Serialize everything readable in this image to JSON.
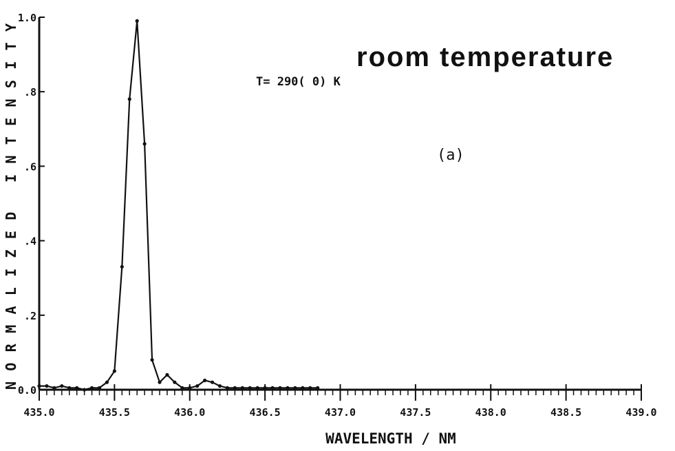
{
  "chart_data": {
    "type": "line",
    "title": "room temperature",
    "annotation": "T= 290( 0) K",
    "panel_label": "(a)",
    "xlabel": "WAVELENGTH / NM",
    "ylabel": "NORMALIZED INTENSITY",
    "xlim": [
      435.0,
      439.0
    ],
    "ylim": [
      0.0,
      1.0
    ],
    "xticks": [
      435.0,
      435.5,
      436.0,
      436.5,
      437.0,
      437.5,
      438.0,
      438.5,
      439.0
    ],
    "xtick_labels": [
      "435.0",
      "435.5",
      "436.0",
      "436.5",
      "437.0",
      "437.5",
      "438.0",
      "438.5",
      "439.0"
    ],
    "yticks": [
      0.0,
      0.2,
      0.4,
      0.6,
      0.8,
      1.0
    ],
    "ytick_labels": [
      "0.0",
      ".2",
      ".4",
      ".6",
      ".8",
      "1.0"
    ],
    "grid": false,
    "series": [
      {
        "style": "solid-line-with-dots",
        "x": [
          435.0,
          435.05,
          435.1,
          435.15,
          435.2,
          435.25,
          435.3,
          435.35,
          435.4,
          435.45,
          435.5,
          435.55,
          435.6,
          435.65,
          435.7,
          435.75,
          435.8,
          435.85,
          435.9,
          435.95,
          436.0,
          436.05,
          436.1,
          436.15,
          436.2,
          436.25,
          436.3,
          436.35,
          436.4,
          436.45,
          436.5,
          436.55,
          436.6,
          436.65,
          436.7,
          436.75,
          436.8,
          436.85
        ],
        "y": [
          0.01,
          0.01,
          0.005,
          0.01,
          0.005,
          0.005,
          0.0,
          0.005,
          0.005,
          0.02,
          0.05,
          0.33,
          0.78,
          0.99,
          0.66,
          0.08,
          0.02,
          0.04,
          0.02,
          0.005,
          0.005,
          0.01,
          0.025,
          0.02,
          0.01,
          0.005,
          0.005,
          0.005,
          0.005,
          0.005,
          0.005,
          0.005,
          0.005,
          0.005,
          0.005,
          0.005,
          0.005,
          0.005
        ]
      }
    ]
  }
}
